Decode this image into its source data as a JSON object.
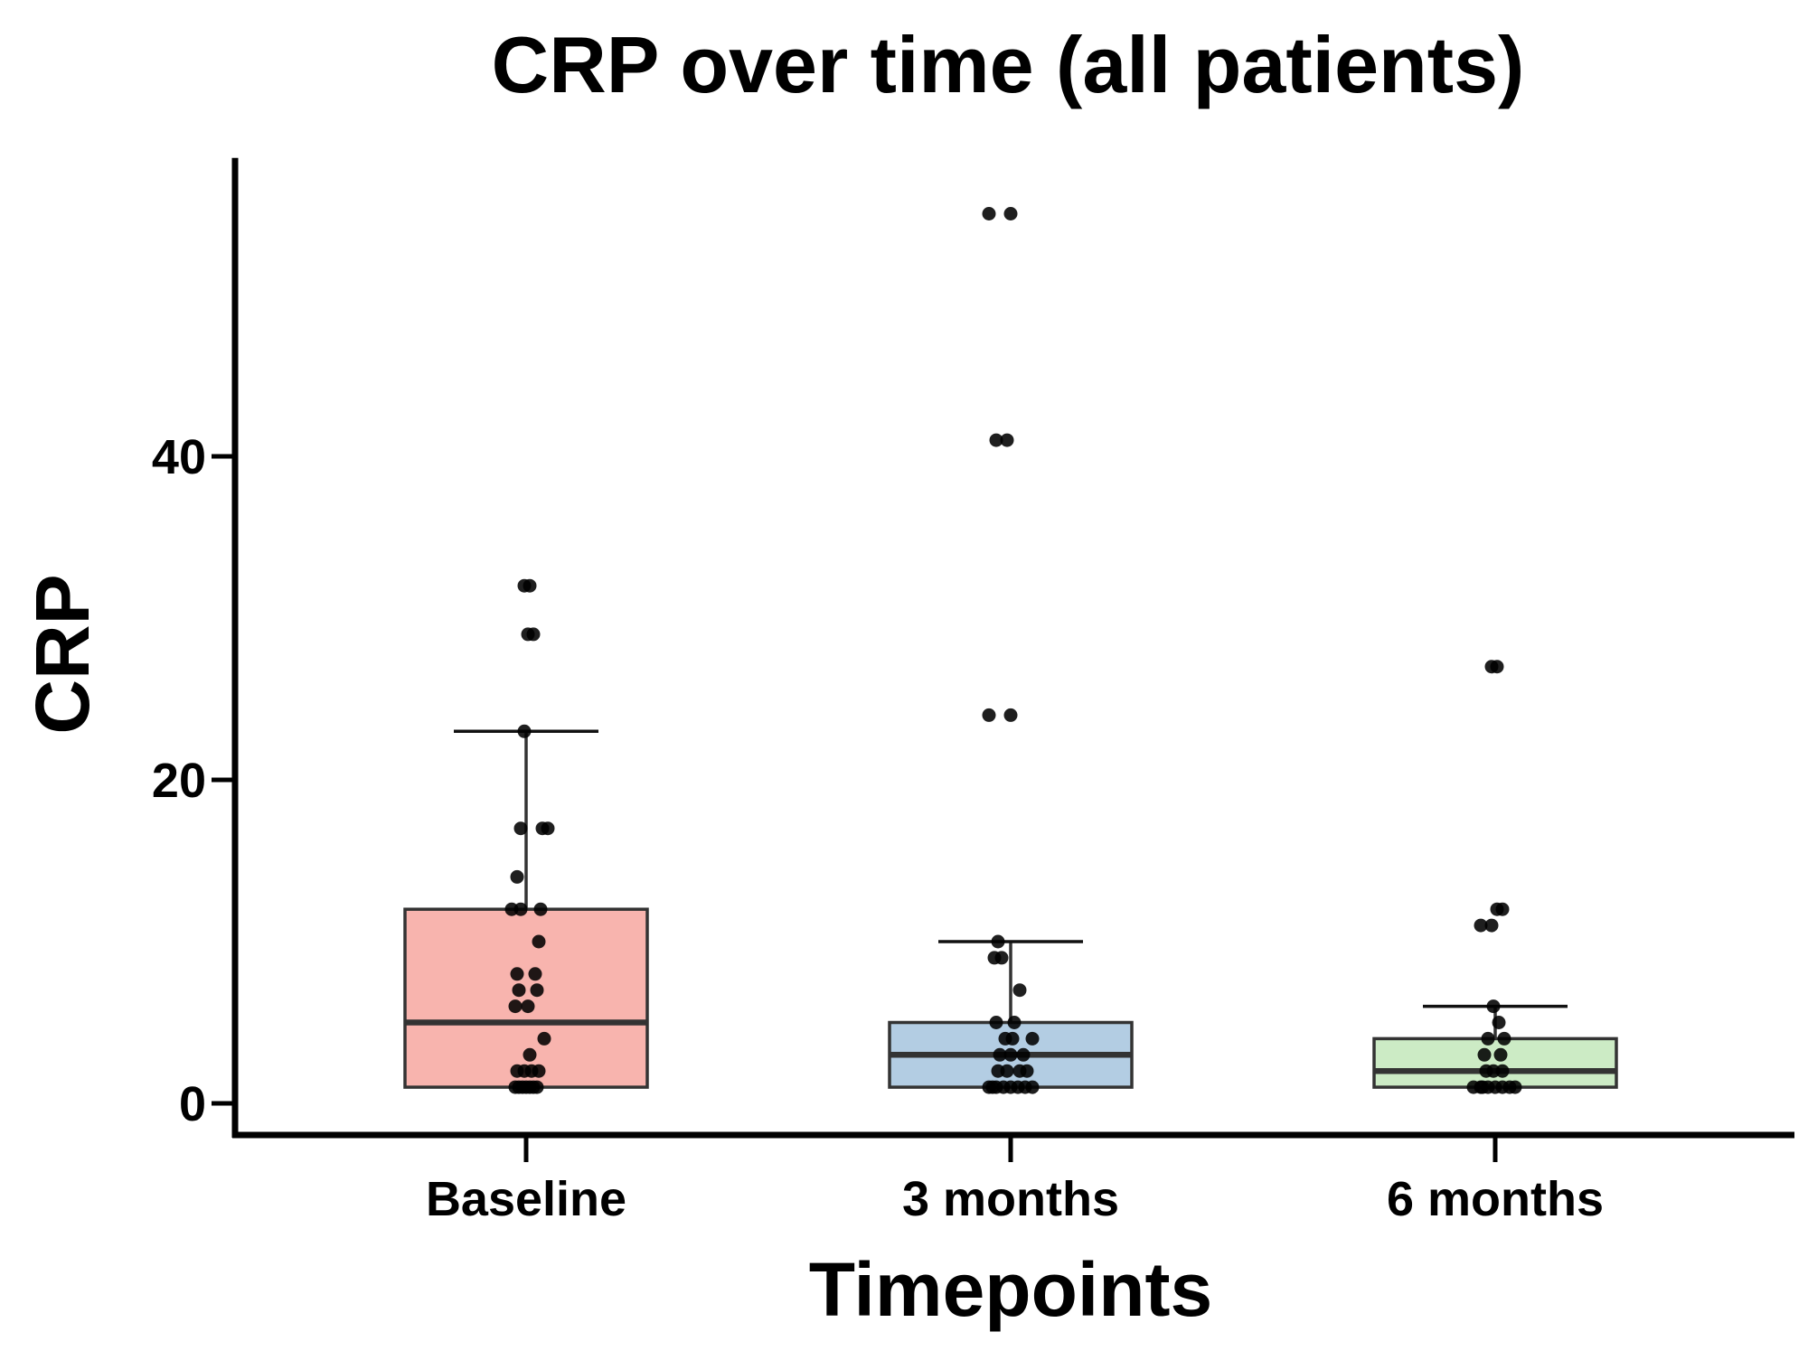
{
  "chart_data": {
    "type": "box",
    "title": "CRP over time (all patients)",
    "xlabel": "Timepoints",
    "ylabel": "CRP",
    "ylim": [
      -2,
      58
    ],
    "yticks": [
      0,
      20,
      40
    ],
    "yticklabels": [
      "0",
      "20",
      "40"
    ],
    "categories": [
      "Baseline",
      "3 months",
      "6 months"
    ],
    "grid": false,
    "legend": "none",
    "boxes": [
      {
        "category": "Baseline",
        "color": "#f8b4ae",
        "min": 1,
        "q1": 1,
        "median": 5,
        "q3": 12,
        "whisker_high": 23,
        "points": [
          1,
          1,
          1,
          1,
          1,
          1,
          1,
          2,
          2,
          2,
          2,
          3,
          4,
          6,
          6,
          7,
          7,
          8,
          8,
          10,
          12,
          12,
          12,
          14,
          17,
          17,
          17,
          23,
          29,
          29,
          32,
          32
        ],
        "jitter": [
          -12,
          -4,
          4,
          12,
          -8,
          8,
          0,
          -10,
          -2,
          6,
          14,
          4,
          20,
          -12,
          2,
          -8,
          12,
          -10,
          10,
          14,
          -16,
          -6,
          16,
          -10,
          -6,
          18,
          24,
          -2,
          2,
          8,
          -2,
          4
        ]
      },
      {
        "category": "3 months",
        "color": "#b3cde3",
        "min": 1,
        "q1": 1,
        "median": 3,
        "q3": 5,
        "whisker_high": 10,
        "points": [
          1,
          1,
          1,
          1,
          1,
          1,
          1,
          1,
          2,
          2,
          2,
          2,
          3,
          3,
          3,
          4,
          4,
          4,
          5,
          5,
          7,
          9,
          9,
          10,
          24,
          24,
          41,
          41,
          55,
          55
        ],
        "jitter": [
          -24,
          -16,
          -8,
          0,
          8,
          16,
          24,
          -20,
          -14,
          -4,
          10,
          18,
          -12,
          0,
          14,
          -6,
          2,
          24,
          -16,
          4,
          10,
          -18,
          -10,
          -14,
          -24,
          0,
          -16,
          -4,
          -24,
          0
        ]
      },
      {
        "category": "6 months",
        "color": "#ccebc5",
        "min": 1,
        "q1": 1,
        "median": 2,
        "q3": 4,
        "whisker_high": 6,
        "points": [
          1,
          1,
          1,
          1,
          1,
          1,
          1,
          1,
          2,
          2,
          2,
          3,
          3,
          4,
          4,
          5,
          6,
          11,
          11,
          12,
          12,
          27,
          27
        ],
        "jitter": [
          -24,
          -16,
          -8,
          0,
          8,
          16,
          22,
          -14,
          -10,
          -2,
          8,
          -12,
          6,
          -8,
          10,
          4,
          -2,
          -16,
          -4,
          2,
          8,
          -4,
          2
        ]
      }
    ]
  }
}
